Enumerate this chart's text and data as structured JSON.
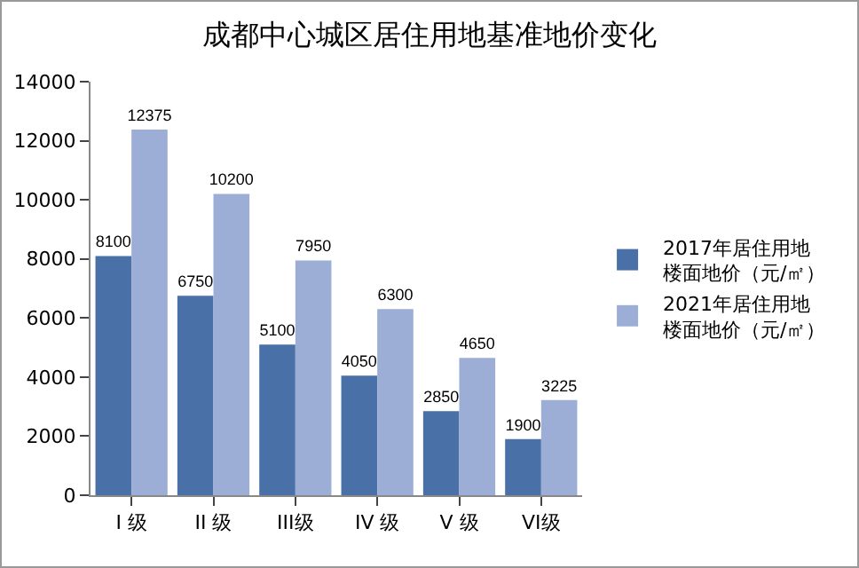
{
  "chart_data": {
    "type": "bar",
    "title": "成都中心城区居住用地基准地价变化",
    "categories": [
      "I 级",
      "II 级",
      "III级",
      "IV 级",
      "V 级",
      "VI级"
    ],
    "series": [
      {
        "name": "2017年居住用地楼面地价（元/㎡）",
        "color": "#4a70a8",
        "values": [
          8100,
          6750,
          5100,
          4050,
          2850,
          1900
        ]
      },
      {
        "name": "2021年居住用地楼面地价（元/㎡）",
        "color": "#9caed6",
        "values": [
          12375,
          10200,
          7950,
          6300,
          4650,
          3225
        ]
      }
    ],
    "ylim": [
      0,
      14000
    ],
    "yticks": [
      0,
      2000,
      4000,
      6000,
      8000,
      10000,
      12000,
      14000
    ],
    "grid": false,
    "legend": "right",
    "data_labels": true
  }
}
